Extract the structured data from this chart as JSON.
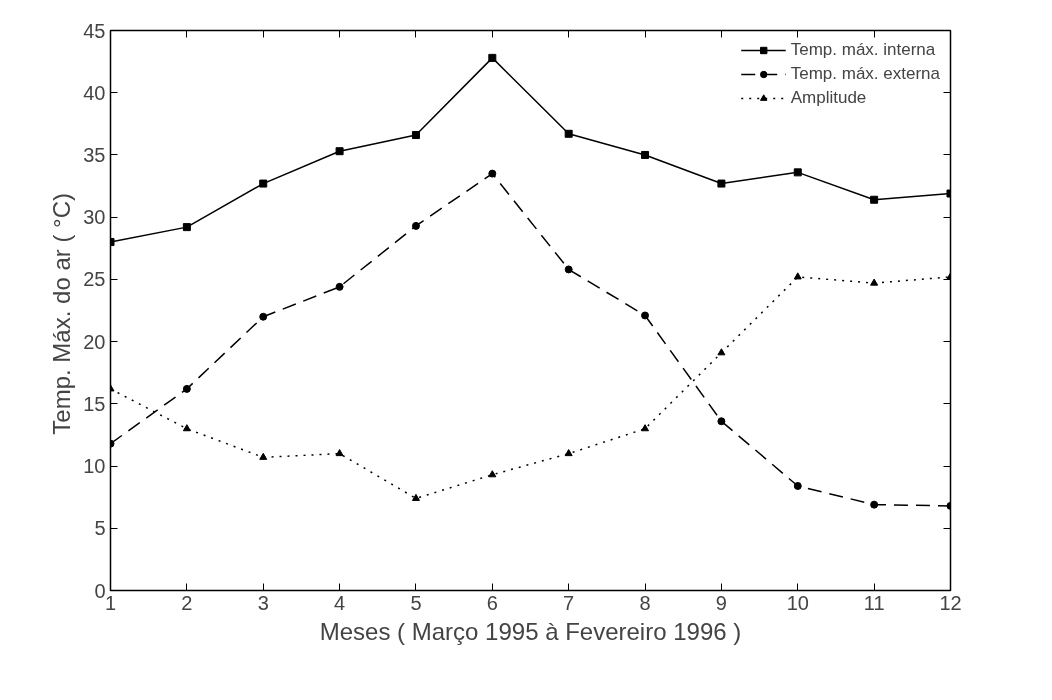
{
  "chart_data": {
    "type": "line",
    "xlabel": "Meses ( Março 1995 à Fevereiro 1996 )",
    "ylabel": "Temp. Máx. do ar  ( °C)",
    "x": [
      1,
      2,
      3,
      4,
      5,
      6,
      7,
      8,
      9,
      10,
      11,
      12
    ],
    "xlim": [
      1,
      12
    ],
    "xticks": [
      1,
      2,
      3,
      4,
      5,
      6,
      7,
      8,
      9,
      10,
      11,
      12
    ],
    "ylim": [
      0,
      45
    ],
    "yticks": [
      0,
      5,
      10,
      15,
      20,
      25,
      30,
      35,
      40,
      45
    ],
    "grid": false,
    "legend": "top right",
    "series": [
      {
        "name": "Temp. máx. interna",
        "color": "#000000",
        "marker": "square",
        "line_style": "solid",
        "values": [
          28,
          29.2,
          32.7,
          35.3,
          36.6,
          42.8,
          36.7,
          35,
          32.7,
          33.6,
          31.4,
          31.9
        ]
      },
      {
        "name": "Temp. máx. externa",
        "color": "#000000",
        "marker": "circle",
        "line_style": "dashed",
        "values": [
          11.8,
          16.2,
          22,
          24.4,
          29.3,
          33.5,
          25.8,
          22.1,
          13.6,
          8.4,
          6.9,
          6.8
        ]
      },
      {
        "name": "Amplitude",
        "color": "#000000",
        "marker": "triangle",
        "line_style": "dotted",
        "values": [
          16.2,
          13,
          10.7,
          11,
          7.4,
          9.3,
          11,
          13,
          19.1,
          25.2,
          24.7,
          25.2
        ]
      }
    ]
  }
}
